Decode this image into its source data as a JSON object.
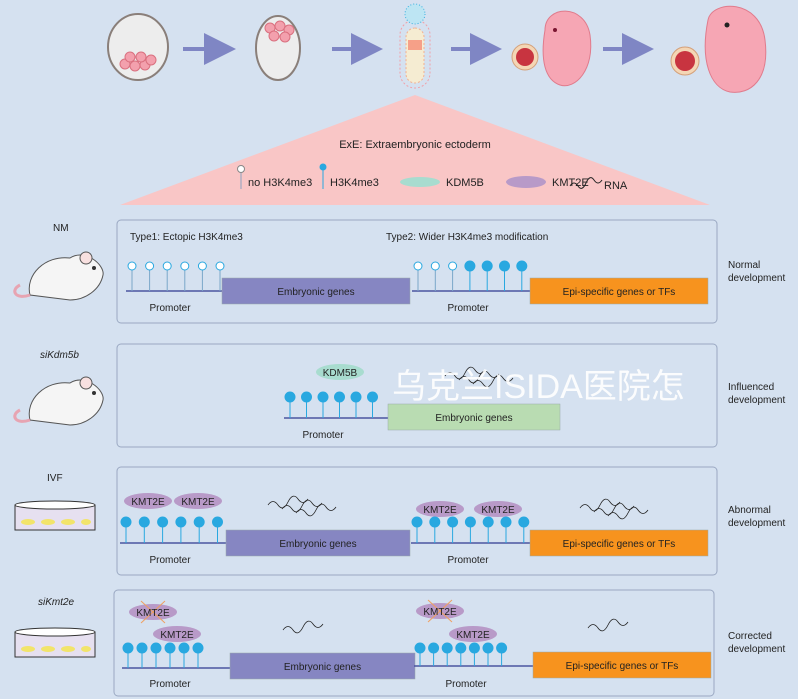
{
  "legend": {
    "title": "ExE: Extraembryonic ectoderm",
    "no_h3k4me3": "no H3K4me3",
    "h3k4me3": "H3K4me3",
    "kdm5b": "KDM5B",
    "kmt2e": "KMT2E",
    "rna": "RNA"
  },
  "colors": {
    "background": "#d5e1f0",
    "triangle": "#f9c6c6",
    "pin": "#29a8e0",
    "embryonic_box": "#8686c2",
    "epi_box": "#f7931e",
    "influenced_box": "#b9dcb2",
    "kdm5b": "#a8dccf",
    "kmt2e": "#b89ac8"
  },
  "panels": [
    {
      "condition": "NM",
      "type1_label": "Type1: Ectopic H3K4me3",
      "type2_label": "Type2: Wider H3K4me3 modification",
      "left": {
        "pins": [
          "empty",
          "empty",
          "empty",
          "empty",
          "empty",
          "empty"
        ],
        "promoter": "Promoter",
        "gene": "Embryonic genes"
      },
      "right": {
        "pins": [
          "empty",
          "empty",
          "empty",
          "filled",
          "filled",
          "filled",
          "filled"
        ],
        "promoter": "Promoter",
        "gene": "Epi-specific genes or TFs"
      },
      "outcome": [
        "Normal",
        "development"
      ]
    },
    {
      "condition": "siKdm5b",
      "left": {
        "pins": [
          "filled",
          "filled",
          "filled",
          "filled",
          "filled",
          "filled"
        ],
        "promoter": "Promoter",
        "gene": "Embryonic genes",
        "enzyme": "KDM5B"
      },
      "outcome": [
        "Influenced",
        "development"
      ]
    },
    {
      "condition": "IVF",
      "left": {
        "pins": [
          "filled",
          "filled",
          "filled",
          "filled",
          "filled",
          "filled"
        ],
        "promoter": "Promoter",
        "gene": "Embryonic genes",
        "enzymes": [
          "KMT2E",
          "KMT2E"
        ]
      },
      "right": {
        "pins": [
          "filled",
          "filled",
          "filled",
          "filled",
          "filled",
          "filled",
          "filled"
        ],
        "promoter": "Promoter",
        "gene": "Epi-specific genes or TFs",
        "enzymes": [
          "KMT2E",
          "KMT2E"
        ]
      },
      "outcome": [
        "Abnormal",
        "development"
      ]
    },
    {
      "condition": "siKmt2e",
      "left": {
        "pins": [
          "filled",
          "filled",
          "filled",
          "filled",
          "filled",
          "filled"
        ],
        "promoter": "Promoter",
        "gene": "Embryonic genes",
        "enzymes": [
          "KMT2E",
          "KMT2E"
        ]
      },
      "right": {
        "pins": [
          "filled",
          "filled",
          "filled",
          "filled",
          "filled",
          "filled",
          "filled"
        ],
        "promoter": "Promoter",
        "gene": "Epi-specific genes or TFs",
        "enzymes": [
          "KMT2E",
          "KMT2E"
        ]
      },
      "outcome": [
        "Corrected",
        "development"
      ]
    }
  ],
  "watermark": "乌克兰ISIDA医院怎"
}
